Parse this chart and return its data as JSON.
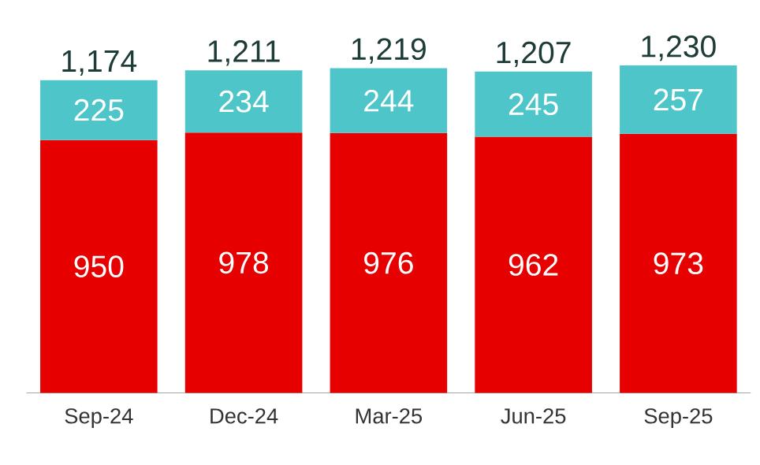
{
  "chart_data": {
    "type": "bar",
    "stacked": true,
    "data_labels": true,
    "categories": [
      "Sep-24",
      "Dec-24",
      "Mar-25",
      "Jun-25",
      "Sep-25"
    ],
    "series": [
      {
        "color": "#e60000",
        "values": [
          950,
          978,
          976,
          962,
          973
        ]
      },
      {
        "color": "#4ec5c8",
        "values": [
          225,
          234,
          244,
          245,
          257
        ]
      }
    ],
    "totals": [
      "1,174",
      "1,211",
      "1,219",
      "1,207",
      "1,230"
    ]
  }
}
